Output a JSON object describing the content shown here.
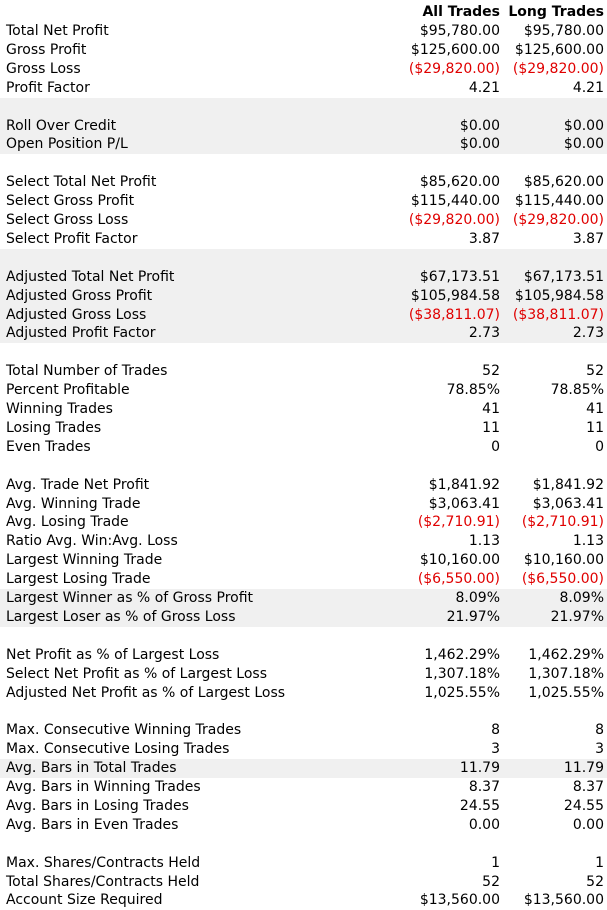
{
  "header": {
    "all_trades": "All Trades",
    "long_trades": "Long Trades"
  },
  "rows": [
    {
      "label": "Total Net Profit",
      "all": "$95,780.00",
      "long": "$95,780.00",
      "neg": false,
      "shaded": false
    },
    {
      "label": "Gross Profit",
      "all": "$125,600.00",
      "long": "$125,600.00",
      "neg": false,
      "shaded": false
    },
    {
      "label": "Gross Loss",
      "all": "($29,820.00)",
      "long": "($29,820.00)",
      "neg": true,
      "shaded": false
    },
    {
      "label": "Profit Factor",
      "all": "4.21",
      "long": "4.21",
      "neg": false,
      "shaded": false
    },
    {
      "blank": true,
      "shaded": true
    },
    {
      "label": "Roll Over Credit",
      "all": "$0.00",
      "long": "$0.00",
      "neg": false,
      "shaded": true
    },
    {
      "label": "Open Position P/L",
      "all": "$0.00",
      "long": "$0.00",
      "neg": false,
      "shaded": true
    },
    {
      "blank": true,
      "shaded": false
    },
    {
      "label": "Select Total Net Profit",
      "all": "$85,620.00",
      "long": "$85,620.00",
      "neg": false,
      "shaded": false
    },
    {
      "label": "Select Gross Profit",
      "all": "$115,440.00",
      "long": "$115,440.00",
      "neg": false,
      "shaded": false
    },
    {
      "label": "Select Gross Loss",
      "all": "($29,820.00)",
      "long": "($29,820.00)",
      "neg": true,
      "shaded": false
    },
    {
      "label": "Select Profit Factor",
      "all": "3.87",
      "long": "3.87",
      "neg": false,
      "shaded": false
    },
    {
      "blank": true,
      "shaded": true
    },
    {
      "label": "Adjusted Total Net Profit",
      "all": "$67,173.51",
      "long": "$67,173.51",
      "neg": false,
      "shaded": true
    },
    {
      "label": "Adjusted Gross Profit",
      "all": "$105,984.58",
      "long": "$105,984.58",
      "neg": false,
      "shaded": true
    },
    {
      "label": "Adjusted Gross Loss",
      "all": "($38,811.07)",
      "long": "($38,811.07)",
      "neg": true,
      "shaded": true
    },
    {
      "label": "Adjusted Profit Factor",
      "all": "2.73",
      "long": "2.73",
      "neg": false,
      "shaded": true
    },
    {
      "blank": true,
      "shaded": false
    },
    {
      "label": "Total Number of Trades",
      "all": "52",
      "long": "52",
      "neg": false,
      "shaded": false
    },
    {
      "label": "Percent Profitable",
      "all": "78.85%",
      "long": "78.85%",
      "neg": false,
      "shaded": false
    },
    {
      "label": "Winning Trades",
      "all": "41",
      "long": "41",
      "neg": false,
      "shaded": false
    },
    {
      "label": "Losing Trades",
      "all": "11",
      "long": "11",
      "neg": false,
      "shaded": false
    },
    {
      "label": "Even Trades",
      "all": "0",
      "long": "0",
      "neg": false,
      "shaded": false
    },
    {
      "blank": true,
      "shaded": false
    },
    {
      "label": "Avg. Trade Net Profit",
      "all": "$1,841.92",
      "long": "$1,841.92",
      "neg": false,
      "shaded": false
    },
    {
      "label": "Avg. Winning Trade",
      "all": "$3,063.41",
      "long": "$3,063.41",
      "neg": false,
      "shaded": false
    },
    {
      "label": "Avg. Losing Trade",
      "all": "($2,710.91)",
      "long": "($2,710.91)",
      "neg": true,
      "shaded": false
    },
    {
      "label": "Ratio Avg. Win:Avg. Loss",
      "all": "1.13",
      "long": "1.13",
      "neg": false,
      "shaded": false
    },
    {
      "label": "Largest Winning Trade",
      "all": "$10,160.00",
      "long": "$10,160.00",
      "neg": false,
      "shaded": false
    },
    {
      "label": "Largest Losing Trade",
      "all": "($6,550.00)",
      "long": "($6,550.00)",
      "neg": true,
      "shaded": false
    },
    {
      "label": "Largest Winner as % of Gross Profit",
      "all": "8.09%",
      "long": "8.09%",
      "neg": false,
      "shaded": true
    },
    {
      "label": "Largest Loser as % of Gross Loss",
      "all": "21.97%",
      "long": "21.97%",
      "neg": false,
      "shaded": true
    },
    {
      "blank": true,
      "shaded": false
    },
    {
      "label": "Net Profit as % of Largest Loss",
      "all": "1,462.29%",
      "long": "1,462.29%",
      "neg": false,
      "shaded": false
    },
    {
      "label": "Select Net Profit as % of Largest Loss",
      "all": "1,307.18%",
      "long": "1,307.18%",
      "neg": false,
      "shaded": false
    },
    {
      "label": "Adjusted Net Profit as % of Largest Loss",
      "all": "1,025.55%",
      "long": "1,025.55%",
      "neg": false,
      "shaded": false
    },
    {
      "blank": true,
      "shaded": false
    },
    {
      "label": "Max. Consecutive Winning Trades",
      "all": "8",
      "long": "8",
      "neg": false,
      "shaded": false
    },
    {
      "label": "Max. Consecutive Losing Trades",
      "all": "3",
      "long": "3",
      "neg": false,
      "shaded": false
    },
    {
      "label": "Avg. Bars in Total Trades",
      "all": "11.79",
      "long": "11.79",
      "neg": false,
      "shaded": true
    },
    {
      "label": "Avg. Bars in Winning Trades",
      "all": "8.37",
      "long": "8.37",
      "neg": false,
      "shaded": false
    },
    {
      "label": "Avg. Bars in Losing Trades",
      "all": "24.55",
      "long": "24.55",
      "neg": false,
      "shaded": false
    },
    {
      "label": "Avg. Bars in Even Trades",
      "all": "0.00",
      "long": "0.00",
      "neg": false,
      "shaded": false
    },
    {
      "blank": true,
      "shaded": false
    },
    {
      "label": "Max. Shares/Contracts Held",
      "all": "1",
      "long": "1",
      "neg": false,
      "shaded": false
    },
    {
      "label": "Total Shares/Contracts Held",
      "all": "52",
      "long": "52",
      "neg": false,
      "shaded": false
    },
    {
      "label": "Account Size Required",
      "all": "$13,560.00",
      "long": "$13,560.00",
      "neg": false,
      "shaded": false
    }
  ],
  "colors": {
    "negative": "#e00000",
    "shade": "#f0f0f0"
  }
}
